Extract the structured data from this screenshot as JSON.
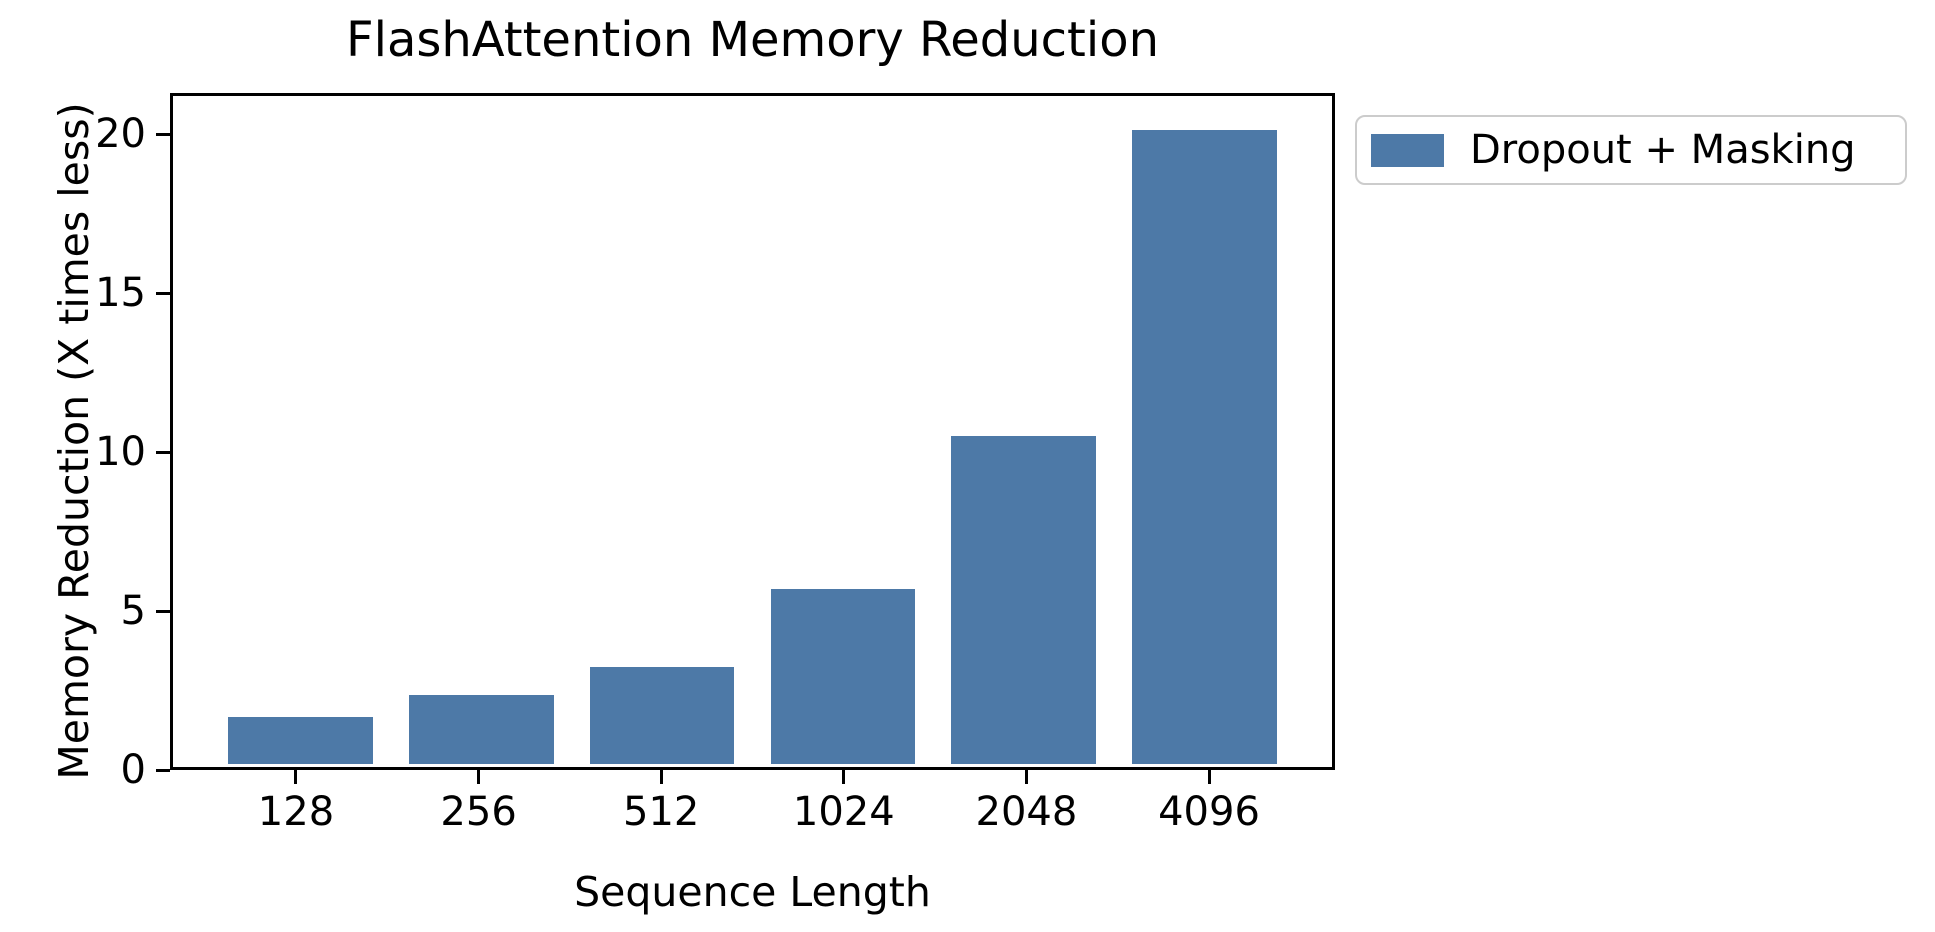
{
  "chart_data": {
    "type": "bar",
    "title": "FlashAttention Memory Reduction",
    "xlabel": "Sequence Length",
    "ylabel": "Memory Reduction (X times less)",
    "categories": [
      "128",
      "256",
      "512",
      "1024",
      "2048",
      "4096"
    ],
    "series": [
      {
        "name": "Dropout + Masking",
        "color": "#4d79a7",
        "values": [
          1.5,
          2.2,
          3.1,
          5.6,
          10.5,
          20.3
        ]
      }
    ],
    "ylim": [
      0,
      21.3
    ],
    "yticks": [
      0,
      5,
      10,
      15,
      20
    ],
    "grid": false,
    "legend_position": "outside-upper-right",
    "bar_width_fraction": 0.8,
    "x_pad_units": 0.69
  },
  "legend": {
    "items": [
      {
        "label": "Dropout + Masking",
        "color": "#4d79a7"
      }
    ]
  },
  "colors": {
    "bar": "#4d79a7",
    "spine": "#000000",
    "legend_border": "#cccccc",
    "background": "#ffffff"
  }
}
